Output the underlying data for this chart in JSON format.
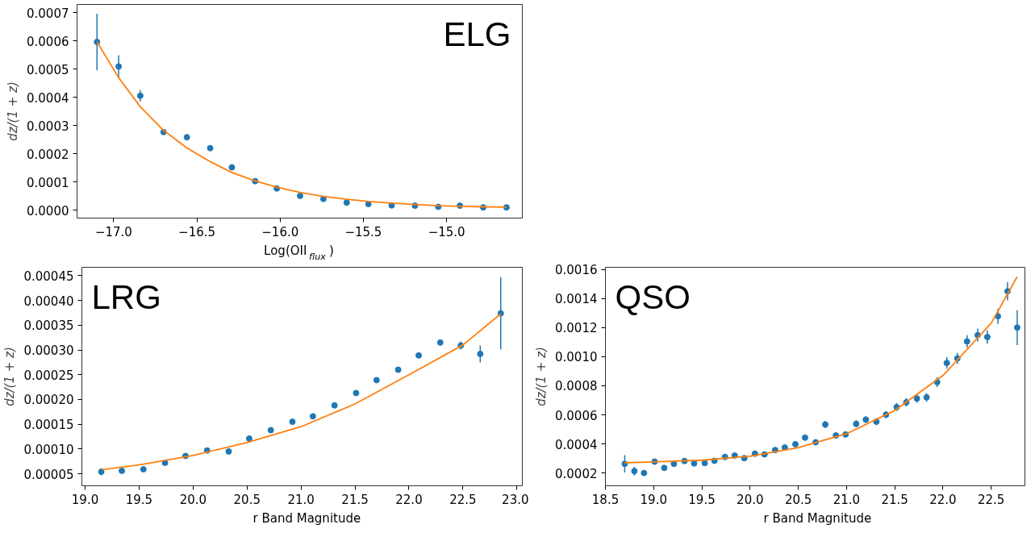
{
  "chart_data": [
    {
      "type": "scatter",
      "title": "ELG",
      "xlabel": "Log(OII$_{flux}$)",
      "ylabel": "dz/(1 + z)",
      "grid": false,
      "xlim": [
        -17.22,
        -14.545
      ],
      "ylim": [
        -2.8e-05,
        0.00073
      ],
      "xticks": [
        {
          "value": -17.0,
          "label": "−17.0"
        },
        {
          "value": -16.5,
          "label": "−16.5"
        },
        {
          "value": -16.0,
          "label": "−16.0"
        },
        {
          "value": -15.5,
          "label": "−15.5"
        },
        {
          "value": -15.0,
          "label": "−15.0"
        }
      ],
      "yticks": [
        {
          "value": 0,
          "label": "0.0000"
        },
        {
          "value": 0.0001,
          "label": "0.0001"
        },
        {
          "value": 0.0002,
          "label": "0.0002"
        },
        {
          "value": 0.0003,
          "label": "0.0003"
        },
        {
          "value": 0.0004,
          "label": "0.0004"
        },
        {
          "value": 0.0005,
          "label": "0.0005"
        },
        {
          "value": 0.0006,
          "label": "0.0006"
        },
        {
          "value": 0.0007,
          "label": "0.0007"
        }
      ],
      "series": [
        {
          "marker": "circle",
          "color": "#1f77b4",
          "x": [
            -17.1,
            -16.97,
            -16.84,
            -16.7,
            -16.56,
            -16.42,
            -16.29,
            -16.15,
            -16.02,
            -15.88,
            -15.74,
            -15.6,
            -15.47,
            -15.33,
            -15.19,
            -15.05,
            -14.92,
            -14.78,
            -14.64
          ],
          "values": [
            0.000597,
            0.00051,
            0.000406,
            0.000277,
            0.000259,
            0.00022,
            0.000152,
            0.000103,
            7.7e-05,
            5.1e-05,
            4e-05,
            2.7e-05,
            2.2e-05,
            1.7e-05,
            1.6e-05,
            1.2e-05,
            1.6e-05,
            1e-05,
            1e-05
          ],
          "errors": [
            0.0001,
            4e-05,
            2e-05,
            null,
            null,
            null,
            null,
            null,
            null,
            null,
            null,
            null,
            null,
            null,
            null,
            null,
            null,
            null,
            null
          ]
        },
        {
          "type": "line",
          "color": "#ff7f0e",
          "x": [
            -17.1,
            -16.97,
            -16.84,
            -16.7,
            -16.56,
            -16.42,
            -16.29,
            -16.15,
            -16.02,
            -15.88,
            -15.74,
            -15.6,
            -15.47,
            -15.33,
            -15.19,
            -15.05,
            -14.92,
            -14.78,
            -14.64
          ],
          "values": [
            0.000597,
            0.00047,
            0.000367,
            0.000283,
            0.000221,
            0.000172,
            0.000134,
            0.000104,
            8.2e-05,
            6.3e-05,
            4.9e-05,
            3.9e-05,
            3.1e-05,
            2.5e-05,
            2e-05,
            1.6e-05,
            1.4e-05,
            1.2e-05,
            1.1e-05
          ]
        }
      ]
    },
    {
      "type": "scatter",
      "title": "LRG",
      "xlabel": "r Band Magnitude",
      "ylabel": "dz/(1 + z)",
      "grid": false,
      "xlim": [
        18.97,
        23.05
      ],
      "ylim": [
        2.57e-05,
        0.000467
      ],
      "xticks": [
        {
          "value": 19.0,
          "label": "19.0"
        },
        {
          "value": 19.5,
          "label": "19.5"
        },
        {
          "value": 20.0,
          "label": "20.0"
        },
        {
          "value": 20.5,
          "label": "20.5"
        },
        {
          "value": 21.0,
          "label": "21.0"
        },
        {
          "value": 21.5,
          "label": "21.5"
        },
        {
          "value": 22.0,
          "label": "22.0"
        },
        {
          "value": 22.5,
          "label": "22.5"
        },
        {
          "value": 23.0,
          "label": "23.0"
        }
      ],
      "yticks": [
        {
          "value": 5e-05,
          "label": "0.00005"
        },
        {
          "value": 0.0001,
          "label": "0.00010"
        },
        {
          "value": 0.00015,
          "label": "0.00015"
        },
        {
          "value": 0.0002,
          "label": "0.00020"
        },
        {
          "value": 0.00025,
          "label": "0.00025"
        },
        {
          "value": 0.0003,
          "label": "0.00030"
        },
        {
          "value": 0.00035,
          "label": "0.00035"
        },
        {
          "value": 0.0004,
          "label": "0.00040"
        },
        {
          "value": 0.00045,
          "label": "0.00045"
        }
      ],
      "series": [
        {
          "marker": "circle",
          "color": "#1f77b4",
          "x": [
            19.15,
            19.34,
            19.54,
            19.74,
            19.93,
            20.13,
            20.33,
            20.52,
            20.72,
            20.92,
            21.11,
            21.31,
            21.51,
            21.7,
            21.9,
            22.09,
            22.29,
            22.48,
            22.66,
            22.85
          ],
          "values": [
            5.4e-05,
            5.6e-05,
            5.9e-05,
            7.2e-05,
            8.6e-05,
            9.7e-05,
            9.5e-05,
            0.000121,
            0.000138,
            0.000155,
            0.000166,
            0.000188,
            0.000213,
            0.000239,
            0.00026,
            0.000289,
            0.000315,
            0.000309,
            0.000292,
            0.000374
          ],
          "errors": [
            7e-06,
            null,
            null,
            null,
            null,
            null,
            null,
            null,
            null,
            null,
            null,
            null,
            null,
            null,
            null,
            3e-06,
            4e-06,
            8e-06,
            1.7e-05,
            7.3e-05
          ]
        },
        {
          "type": "line",
          "color": "#ff7f0e",
          "x": [
            19.15,
            19.5,
            20.0,
            20.5,
            21.0,
            21.5,
            22.0,
            22.5,
            22.85
          ],
          "values": [
            5.8e-05,
            6.8e-05,
            8.7e-05,
            0.000113,
            0.000145,
            0.000191,
            0.00025,
            0.00031,
            0.000373
          ]
        }
      ]
    },
    {
      "type": "scatter",
      "title": "QSO",
      "xlabel": "r Band Magnitude",
      "ylabel": "dz/(1 + z)",
      "grid": false,
      "xlim": [
        18.5,
        22.85
      ],
      "ylim": [
        0.000112,
        0.001615
      ],
      "xticks": [
        {
          "value": 18.5,
          "label": "18.5"
        },
        {
          "value": 19.0,
          "label": "19.0"
        },
        {
          "value": 19.5,
          "label": "19.5"
        },
        {
          "value": 20.0,
          "label": "20.0"
        },
        {
          "value": 20.5,
          "label": "20.5"
        },
        {
          "value": 21.0,
          "label": "21.0"
        },
        {
          "value": 21.5,
          "label": "21.5"
        },
        {
          "value": 22.0,
          "label": "22.0"
        },
        {
          "value": 22.5,
          "label": "22.5"
        }
      ],
      "yticks": [
        {
          "value": 0.0002,
          "label": "0.0002"
        },
        {
          "value": 0.0004,
          "label": "0.0004"
        },
        {
          "value": 0.0006,
          "label": "0.0006"
        },
        {
          "value": 0.0008,
          "label": "0.0008"
        },
        {
          "value": 0.001,
          "label": "0.0010"
        },
        {
          "value": 0.0012,
          "label": "0.0012"
        },
        {
          "value": 0.0014,
          "label": "0.0014"
        },
        {
          "value": 0.0016,
          "label": "0.0016"
        }
      ],
      "series": [
        {
          "marker": "circle",
          "color": "#1f77b4",
          "x": [
            18.7,
            18.8,
            18.9,
            19.01,
            19.11,
            19.21,
            19.32,
            19.42,
            19.53,
            19.63,
            19.74,
            19.84,
            19.94,
            20.05,
            20.15,
            20.26,
            20.36,
            20.47,
            20.57,
            20.68,
            20.78,
            20.89,
            20.99,
            21.1,
            21.2,
            21.31,
            21.41,
            21.52,
            21.62,
            21.73,
            21.83,
            21.94,
            22.04,
            22.15,
            22.25,
            22.36,
            22.46,
            22.57,
            22.67,
            22.77
          ],
          "values": [
            0.000263,
            0.000213,
            0.0002,
            0.000278,
            0.000235,
            0.000263,
            0.000282,
            0.000266,
            0.000268,
            0.000284,
            0.00031,
            0.00032,
            0.000302,
            0.000333,
            0.000328,
            0.000358,
            0.000375,
            0.000398,
            0.000443,
            0.000411,
            0.000533,
            0.000458,
            0.000465,
            0.000538,
            0.000567,
            0.000553,
            0.000601,
            0.000653,
            0.000686,
            0.000712,
            0.00072,
            0.000825,
            0.000957,
            0.000988,
            0.001105,
            0.001148,
            0.001135,
            0.001278,
            0.00145,
            0.0012
          ],
          "errors": [
            6e-05,
            3e-05,
            1.2e-05,
            2e-05,
            1.2e-05,
            1.5e-05,
            1.7e-05,
            1.3e-05,
            1.3e-05,
            1.6e-05,
            1.5e-05,
            1.7e-05,
            1.4e-05,
            1.7e-05,
            1.5e-05,
            1.7e-05,
            1.7e-05,
            1.9e-05,
            2e-05,
            1.8e-05,
            2.5e-05,
            1.7e-05,
            1.9e-05,
            2.4e-05,
            2.3e-05,
            2.4e-05,
            2.4e-05,
            2.7e-05,
            2.9e-05,
            2.9e-05,
            3e-05,
            3.3e-05,
            4e-05,
            3.8e-05,
            4.3e-05,
            4.5e-05,
            4.5e-05,
            5.2e-05,
            6.3e-05,
            0.00012
          ]
        },
        {
          "type": "line",
          "color": "#ff7f0e",
          "x": [
            18.7,
            19.0,
            19.5,
            20.0,
            20.5,
            21.0,
            21.5,
            22.0,
            22.5,
            22.77
          ],
          "values": [
            0.00027,
            0.000276,
            0.000288,
            0.000315,
            0.000375,
            0.00047,
            0.00063,
            0.00087,
            0.00123,
            0.00155
          ]
        }
      ]
    }
  ]
}
